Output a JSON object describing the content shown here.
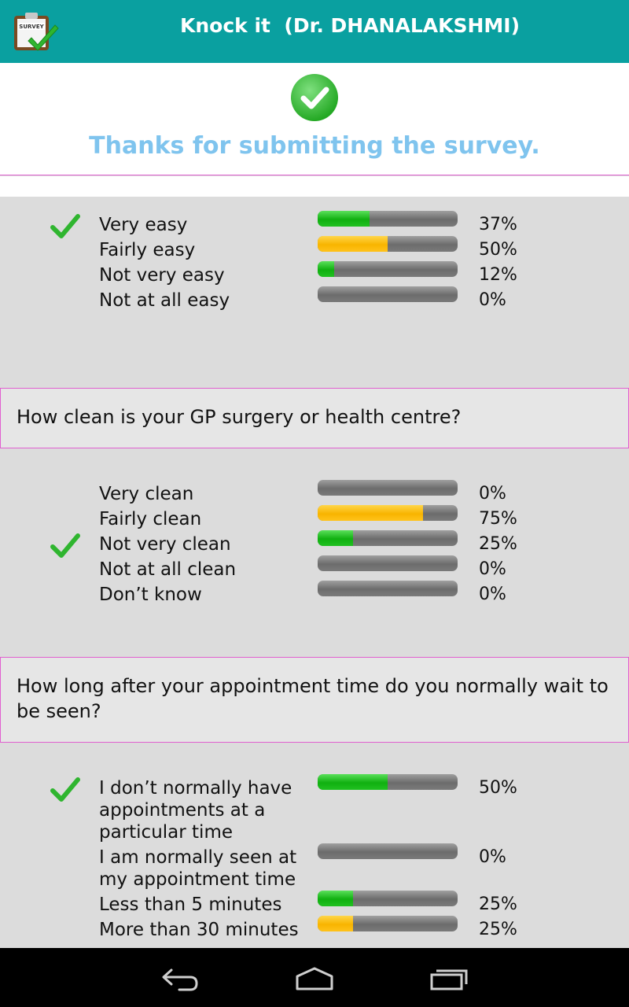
{
  "app": {
    "title": "Knock it  (Dr. DHANALAKSHMI)",
    "icon": "survey-clipboard-icon",
    "header_color": "#0aa0a0"
  },
  "confirmation": {
    "icon": "green-check-circle-icon",
    "text": "Thanks for submitting the survey."
  },
  "sections": [
    {
      "question": "",
      "answers": [
        {
          "label": "Very easy",
          "percent_text": "37%",
          "fill": 0.37,
          "color": "green",
          "selected": true
        },
        {
          "label": "Fairly easy",
          "percent_text": "50%",
          "fill": 0.5,
          "color": "yellow",
          "selected": false
        },
        {
          "label": "Not very easy",
          "percent_text": "12%",
          "fill": 0.12,
          "color": "green",
          "selected": false
        },
        {
          "label": "Not at all easy",
          "percent_text": "0%",
          "fill": 0,
          "color": "green",
          "selected": false
        }
      ]
    },
    {
      "question": "How clean is your GP surgery or health centre?",
      "answers": [
        {
          "label": "Very clean",
          "percent_text": "0%",
          "fill": 0,
          "color": "green",
          "selected": false
        },
        {
          "label": "Fairly clean",
          "percent_text": "75%",
          "fill": 0.75,
          "color": "yellow",
          "selected": false
        },
        {
          "label": "Not very clean",
          "percent_text": "25%",
          "fill": 0.25,
          "color": "green",
          "selected": true
        },
        {
          "label": "Not at all clean",
          "percent_text": "0%",
          "fill": 0,
          "color": "green",
          "selected": false
        },
        {
          "label": "Don’t know",
          "percent_text": "0%",
          "fill": 0,
          "color": "green",
          "selected": false
        }
      ]
    },
    {
      "question": "How long after your appointment time do you normally wait to be seen?",
      "answers": [
        {
          "label": "I don’t normally have appointments at a particular time",
          "percent_text": "50%",
          "fill": 0.5,
          "color": "green",
          "selected": true
        },
        {
          "label": "I am normally seen at my appointment time",
          "percent_text": "0%",
          "fill": 0,
          "color": "green",
          "selected": false
        },
        {
          "label": "Less than 5 minutes",
          "percent_text": "25%",
          "fill": 0.25,
          "color": "green",
          "selected": false
        },
        {
          "label": "More than 30 minutes",
          "percent_text": "25%",
          "fill": 0.25,
          "color": "yellow",
          "selected": false
        }
      ]
    }
  ],
  "navigation": {
    "back": "back-icon",
    "home": "home-icon",
    "recents": "recents-icon"
  }
}
